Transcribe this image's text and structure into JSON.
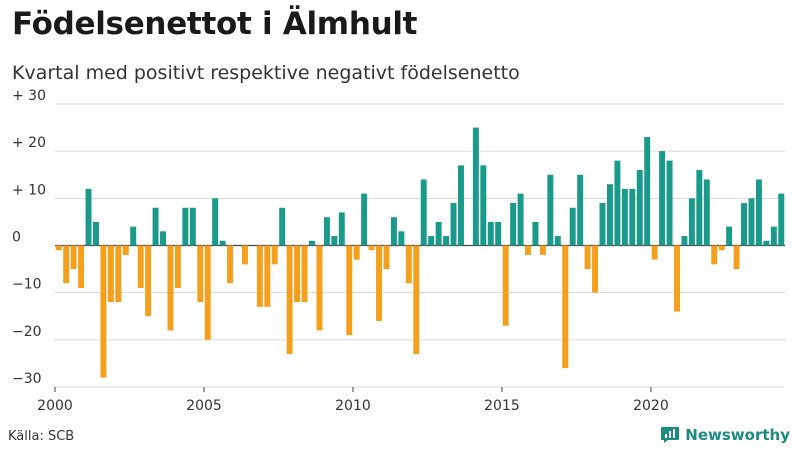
{
  "title": "Födelsenettot i Älmhult",
  "subtitle": "Kvartal med positivt respektive negativt födelsenetto",
  "source": "Källa: SCB",
  "brand": "Newsworthy",
  "colors": {
    "positive": "#1a9a8b",
    "negative": "#f5a01d",
    "brand": "#1b8a80"
  },
  "chart_data": {
    "type": "bar",
    "title": "Födelsenettot i Älmhult",
    "subtitle": "Kvartal med positivt respektive negativt födelsenetto",
    "xlabel": "",
    "ylabel": "",
    "ylim": [
      -30,
      30
    ],
    "xlim": [
      2000,
      2024.5
    ],
    "grid": true,
    "legend": "none",
    "y_ticks": [
      30,
      20,
      10,
      0,
      -10,
      -20,
      -30
    ],
    "y_tick_labels": [
      "+ 30",
      "+ 20",
      "+ 10",
      "0",
      "−10",
      "−20",
      "−30"
    ],
    "x_ticks": [
      2000,
      2005,
      2010,
      2015,
      2020
    ],
    "x_tick_labels": [
      "2000",
      "2005",
      "2010",
      "2015",
      "2020"
    ],
    "start_year": 2000,
    "period": "quarter",
    "values": [
      -1,
      -8,
      -5,
      -9,
      12,
      5,
      -28,
      -12,
      -12,
      -2,
      4,
      -9,
      -15,
      8,
      3,
      -18,
      -9,
      8,
      8,
      -12,
      -20,
      10,
      1,
      -8,
      0,
      -4,
      0,
      -13,
      -13,
      -4,
      8,
      -23,
      -12,
      -12,
      1,
      -18,
      6,
      2,
      7,
      -19,
      -3,
      11,
      -1,
      -16,
      -5,
      6,
      3,
      -8,
      -23,
      14,
      2,
      5,
      2,
      9,
      17,
      0,
      25,
      17,
      5,
      5,
      -17,
      9,
      11,
      -2,
      5,
      -2,
      15,
      2,
      -26,
      8,
      15,
      -5,
      -10,
      9,
      13,
      18,
      12,
      12,
      16,
      23,
      -3,
      20,
      18,
      -14,
      2,
      10,
      16,
      14,
      -4,
      -1,
      4,
      -5,
      9,
      10,
      14,
      1,
      4,
      11
    ]
  }
}
